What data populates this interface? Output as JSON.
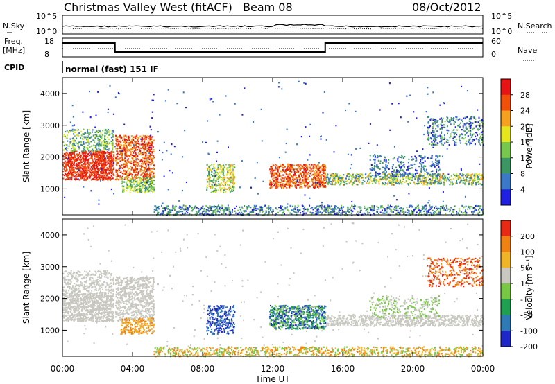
{
  "header": {
    "title": "Christmas Valley West (fitACF)",
    "beam": "Beam 08",
    "date": "08/Oct/2012"
  },
  "top_panels": {
    "nsky_label": "N.Sky",
    "nsearch_label": "N.Search",
    "noise_ticks_left": [
      "10^5",
      "10^0"
    ],
    "noise_ticks_right": [
      "10^5",
      "10^0"
    ],
    "freq_label_1": "Freq.",
    "freq_label_2": "[MHz]",
    "freq_ticks": [
      "18",
      "8"
    ],
    "nave_label": "Nave",
    "nave_ticks": [
      "60",
      "0"
    ],
    "cpid_label": "CPID",
    "cpid_value": "normal (fast) 151 IF"
  },
  "chart_data": [
    {
      "type": "heatmap",
      "name": "power",
      "ylabel": "Slant Range [km]",
      "y_ticks": [
        "4000",
        "3000",
        "2000",
        "1000"
      ],
      "ylim": [
        180,
        4500
      ],
      "colorbar_label": "Power [dB]",
      "colorbar_ticks": [
        "28",
        "24",
        "20",
        "16",
        "12",
        "8",
        "4"
      ],
      "colorbar_colors": [
        "#2020e0",
        "#3c78c8",
        "#3c9664",
        "#78c850",
        "#e6e61e",
        "#f5a01e",
        "#f0500a",
        "#e61414"
      ]
    },
    {
      "type": "heatmap",
      "name": "velocity",
      "ylabel": "Slant Range [km]",
      "y_ticks": [
        "4000",
        "3000",
        "2000",
        "1000"
      ],
      "ylim": [
        180,
        4500
      ],
      "colorbar_label": "Velocity [m s⁻¹]",
      "colorbar_ticks": [
        "200",
        "100",
        "50",
        "15",
        "-15",
        "-50",
        "-100",
        "-200"
      ],
      "colorbar_colors": [
        "#1e28c8",
        "#2e7ab4",
        "#1ea050",
        "#78c846",
        "#c8c8c0",
        "#f0b428",
        "#f08214",
        "#e62a14"
      ]
    }
  ],
  "x_axis": {
    "ticks": [
      "00:00",
      "04:00",
      "08:00",
      "12:00",
      "16:00",
      "20:00",
      "00:00"
    ],
    "label": "Time UT"
  }
}
